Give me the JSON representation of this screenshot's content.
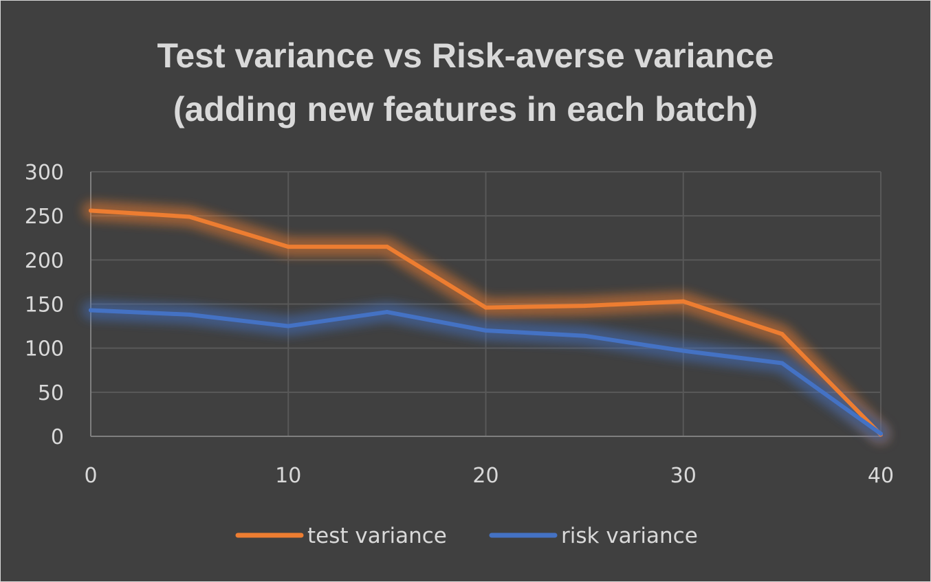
{
  "chart_data": {
    "type": "line",
    "title_lines": [
      "Test variance vs Risk-averse variance",
      "(adding new features in each batch)"
    ],
    "xlabel": "",
    "ylabel": "",
    "x": [
      0,
      5,
      10,
      15,
      20,
      25,
      30,
      35,
      40
    ],
    "xlim": [
      0,
      40
    ],
    "ylim": [
      0,
      300
    ],
    "x_ticks": [
      0,
      10,
      20,
      30,
      40
    ],
    "y_ticks": [
      0,
      50,
      100,
      150,
      200,
      250,
      300
    ],
    "grid": true,
    "legend_position": "bottom",
    "series": [
      {
        "name": "test variance",
        "color": "#ed7d31",
        "values": [
          256,
          249,
          215,
          215,
          146,
          148,
          153,
          116,
          2
        ]
      },
      {
        "name": "risk variance",
        "color": "#4472c4",
        "values": [
          143,
          138,
          125,
          141,
          120,
          114,
          97,
          83,
          3
        ]
      }
    ]
  },
  "colors": {
    "background": "#404040",
    "text": "#d9d9d9",
    "grid": "#595959"
  }
}
